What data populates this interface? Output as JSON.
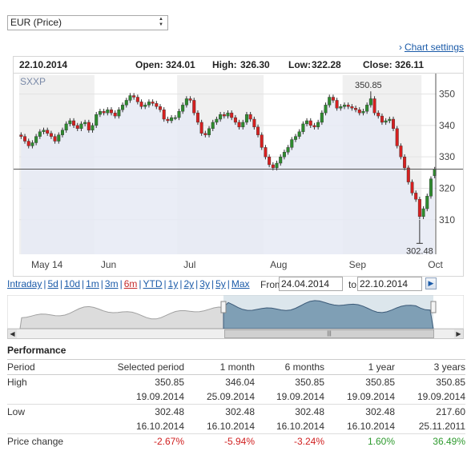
{
  "currency_select": {
    "value": "EUR (Price)"
  },
  "chart_settings_label": "Chart settings",
  "ohlc": {
    "date": "22.10.2014",
    "open_label": "Open:",
    "open": "324.01",
    "high_label": "High:",
    "high": "326.30",
    "low_label": "Low:",
    "low": "322.28",
    "close_label": "Close:",
    "close": "326.11"
  },
  "colors": {
    "up": "#2e8b2e",
    "down": "#d62020",
    "area": "#e6eaf5",
    "band": "#f0f0f0",
    "link": "#1a5aa8",
    "nav_area": "#7f9fb5"
  },
  "chart_data": {
    "type": "candlestick",
    "symbol": "SXXP",
    "x_labels": [
      "May 14",
      "Jun",
      "Jul",
      "Aug",
      "Sep",
      "Oct"
    ],
    "y_ticks": [
      310,
      320,
      330,
      340,
      350
    ],
    "ylim": [
      299,
      356
    ],
    "annotations": [
      {
        "label": "350.85",
        "value": 350.85,
        "date": "19.09.2014"
      },
      {
        "label": "302.48",
        "value": 302.48,
        "date": "16.10.2014"
      }
    ],
    "current_value": 326.11,
    "closes": [
      336.5,
      335.0,
      333.5,
      334.5,
      336.5,
      338.0,
      338.5,
      337.5,
      336.5,
      335.0,
      337.0,
      338.5,
      340.5,
      341.5,
      340.0,
      339.0,
      340.5,
      341.0,
      338.5,
      340.0,
      343.5,
      344.5,
      344.0,
      345.0,
      344.0,
      343.0,
      345.0,
      346.5,
      348.0,
      349.5,
      349.0,
      347.5,
      346.0,
      346.5,
      347.5,
      347.0,
      346.0,
      345.0,
      342.0,
      341.5,
      342.5,
      342.5,
      344.5,
      346.5,
      348.5,
      348.0,
      344.0,
      341.0,
      337.5,
      337.0,
      339.0,
      341.0,
      342.0,
      343.5,
      343.0,
      344.0,
      342.5,
      341.0,
      339.5,
      341.0,
      343.5,
      342.0,
      339.5,
      337.0,
      333.0,
      330.0,
      327.5,
      326.5,
      328.0,
      330.0,
      331.5,
      333.0,
      335.5,
      336.5,
      338.0,
      340.5,
      341.5,
      340.0,
      339.5,
      341.0,
      344.0,
      346.5,
      349.0,
      348.0,
      345.5,
      346.0,
      346.5,
      346.0,
      345.5,
      345.0,
      344.0,
      344.5,
      346.5,
      348.5,
      344.0,
      343.0,
      341.0,
      341.5,
      342.0,
      339.0,
      333.5,
      330.0,
      326.5,
      322.0,
      318.5,
      316.5,
      311.0,
      313.5,
      317.5,
      323.0,
      326.0
    ],
    "opens": [
      337.0,
      336.5,
      335.0,
      333.5,
      334.5,
      336.5,
      338.0,
      338.5,
      337.5,
      336.5,
      335.0,
      337.0,
      338.5,
      340.5,
      341.5,
      340.0,
      339.0,
      340.5,
      341.0,
      338.5,
      340.0,
      343.5,
      344.5,
      344.0,
      345.0,
      344.0,
      343.0,
      345.0,
      346.5,
      348.0,
      349.5,
      349.0,
      347.5,
      346.0,
      346.5,
      347.5,
      347.0,
      346.0,
      345.0,
      342.0,
      341.5,
      342.5,
      342.5,
      344.5,
      346.5,
      348.5,
      348.0,
      344.0,
      341.0,
      337.5,
      337.0,
      339.0,
      341.0,
      342.0,
      343.5,
      343.0,
      344.0,
      342.5,
      341.0,
      339.5,
      341.0,
      343.5,
      342.0,
      339.5,
      337.0,
      333.0,
      330.0,
      327.5,
      326.5,
      328.0,
      330.0,
      331.5,
      333.0,
      335.5,
      336.5,
      338.0,
      340.5,
      341.5,
      340.0,
      339.5,
      341.0,
      344.0,
      346.5,
      349.0,
      348.0,
      345.5,
      346.0,
      346.5,
      346.0,
      345.5,
      345.0,
      344.0,
      344.5,
      346.5,
      348.5,
      344.0,
      343.0,
      341.0,
      341.5,
      342.0,
      339.0,
      333.5,
      330.0,
      326.5,
      322.0,
      318.5,
      316.5,
      311.0,
      313.5,
      317.5,
      324.0
    ]
  },
  "range_links": [
    {
      "label": "Intraday",
      "active": false
    },
    {
      "label": "5d",
      "active": false
    },
    {
      "label": "10d",
      "active": false
    },
    {
      "label": "1m",
      "active": false
    },
    {
      "label": "3m",
      "active": false
    },
    {
      "label": "6m",
      "active": true
    },
    {
      "label": "YTD",
      "active": false
    },
    {
      "label": "1y",
      "active": false
    },
    {
      "label": "2y",
      "active": false
    },
    {
      "label": "3y",
      "active": false
    },
    {
      "label": "5y",
      "active": false
    },
    {
      "label": "Max",
      "active": false
    }
  ],
  "from_label": "From",
  "from_value": "24.04.2014",
  "to_label": "to",
  "to_value": "22.10.2014",
  "performance": {
    "title": "Performance",
    "columns": [
      "Period",
      "Selected period",
      "1 month",
      "6 months",
      "1 year",
      "3 years"
    ],
    "high_label": "High",
    "high_values": [
      "350.85",
      "346.04",
      "350.85",
      "350.85",
      "350.85"
    ],
    "high_dates": [
      "19.09.2014",
      "25.09.2014",
      "19.09.2014",
      "19.09.2014",
      "19.09.2014"
    ],
    "low_label": "Low",
    "low_values": [
      "302.48",
      "302.48",
      "302.48",
      "302.48",
      "217.60"
    ],
    "low_dates": [
      "16.10.2014",
      "16.10.2014",
      "16.10.2014",
      "16.10.2014",
      "25.11.2011"
    ],
    "change_label": "Price change",
    "change_values": [
      "-2.67%",
      "-5.94%",
      "-3.24%",
      "1.60%",
      "36.49%"
    ]
  }
}
